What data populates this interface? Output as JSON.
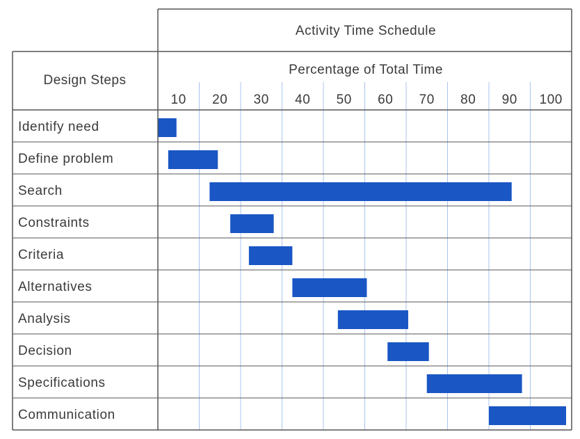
{
  "chart_data": {
    "type": "gantt",
    "title": "Activity Time Schedule",
    "row_header": "Design Steps",
    "xlabel": "Percentage of Total Time",
    "ticks": [
      "10",
      "20",
      "30",
      "40",
      "50",
      "60",
      "70",
      "80",
      "90",
      "100"
    ],
    "xlim": [
      5,
      105
    ],
    "grid": true,
    "bar_color": "#1a56c4",
    "grid_color": "#a8c4ec",
    "border_color": "#555555",
    "tasks": [
      {
        "name": "Identify need",
        "start": 5.0,
        "end": 9.5
      },
      {
        "name": "Define problem",
        "start": 7.5,
        "end": 19.5
      },
      {
        "name": "Search",
        "start": 17.5,
        "end": 90.5
      },
      {
        "name": "Constraints",
        "start": 22.5,
        "end": 33.0
      },
      {
        "name": "Criteria",
        "start": 27.0,
        "end": 37.5
      },
      {
        "name": "Alternatives",
        "start": 37.5,
        "end": 55.5
      },
      {
        "name": "Analysis",
        "start": 48.5,
        "end": 65.5
      },
      {
        "name": "Decision",
        "start": 60.5,
        "end": 70.5
      },
      {
        "name": "Specifications",
        "start": 70.0,
        "end": 93.0
      },
      {
        "name": "Communication",
        "start": 85.0,
        "end": 108.0
      }
    ]
  }
}
